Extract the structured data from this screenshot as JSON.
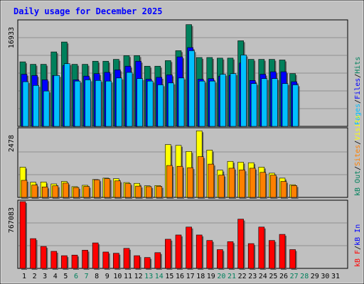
{
  "chart_data": [
    {
      "type": "bar",
      "title": "Daily usage for December 2025",
      "panel": "hits-files-pages",
      "categories": [
        "1",
        "2",
        "3",
        "4",
        "5",
        "6",
        "7",
        "8",
        "9",
        "10",
        "11",
        "12",
        "13",
        "14",
        "15",
        "16",
        "17",
        "18",
        "19",
        "20",
        "21",
        "22",
        "23",
        "24",
        "25",
        "26",
        "27",
        "28",
        "29",
        "30",
        "31"
      ],
      "weekend_days": [
        "6",
        "7",
        "13",
        "14",
        "20",
        "21",
        "27",
        "28"
      ],
      "ymax_label": "16933",
      "ymax": 16933,
      "ylabel_parts": [
        "Pages",
        "/",
        "Files",
        "/",
        "Hits"
      ],
      "series": [
        {
          "name": "Hits",
          "color": "#00805c",
          "values": [
            10400,
            10000,
            10000,
            12000,
            13600,
            10000,
            10000,
            10500,
            10500,
            10800,
            11400,
            11400,
            9700,
            9700,
            10600,
            12200,
            16400,
            11100,
            11100,
            11000,
            11000,
            13800,
            10800,
            10800,
            10800,
            10700,
            8500,
            0,
            0,
            0,
            0
          ]
        },
        {
          "name": "Files",
          "color": "#0000ff",
          "values": [
            8400,
            8200,
            7500,
            8200,
            9800,
            7500,
            8100,
            8500,
            8700,
            9100,
            9700,
            10500,
            7600,
            7900,
            8300,
            11200,
            12700,
            7600,
            7700,
            8100,
            8200,
            10200,
            7400,
            8400,
            8800,
            8800,
            7200,
            0,
            0,
            0,
            0
          ]
        },
        {
          "name": "Pages",
          "color": "#00c0ff",
          "values": [
            7200,
            6600,
            5700,
            8200,
            10100,
            7300,
            7500,
            7400,
            7300,
            7800,
            8700,
            7700,
            7300,
            6700,
            7000,
            7800,
            12200,
            7300,
            7300,
            8400,
            8500,
            11500,
            6900,
            7700,
            7700,
            6900,
            6700,
            0,
            0,
            0,
            0
          ]
        }
      ]
    },
    {
      "type": "bar",
      "panel": "visits-sites-kbout",
      "categories": [
        "1",
        "2",
        "3",
        "4",
        "5",
        "6",
        "7",
        "8",
        "9",
        "10",
        "11",
        "12",
        "13",
        "14",
        "15",
        "16",
        "17",
        "18",
        "19",
        "20",
        "21",
        "22",
        "23",
        "24",
        "25",
        "26",
        "27",
        "28",
        "29",
        "30",
        "31"
      ],
      "ymax_label": "2478",
      "ymax": 2478,
      "ylabel_parts": [
        "kB Out",
        "/",
        "Sites",
        "/",
        "Visits"
      ],
      "series": [
        {
          "name": "Visits",
          "color": "#ffff00",
          "values": [
            1100,
            550,
            560,
            490,
            580,
            390,
            440,
            650,
            700,
            680,
            540,
            510,
            420,
            430,
            1920,
            1890,
            1670,
            2420,
            1720,
            990,
            1310,
            1280,
            1260,
            1100,
            880,
            700,
            460,
            0,
            0,
            0,
            0
          ]
        },
        {
          "name": "Sites",
          "color": "#ff8000",
          "values": [
            620,
            450,
            380,
            420,
            520,
            360,
            400,
            640,
            680,
            600,
            500,
            410,
            390,
            400,
            1160,
            1130,
            1080,
            1480,
            1210,
            810,
            1060,
            1000,
            1060,
            910,
            810,
            580,
            430,
            0,
            0,
            0,
            0
          ]
        },
        {
          "name": "kB Out",
          "color": "#ff0000",
          "values": [
            0,
            0,
            0,
            0,
            0,
            0,
            0,
            0,
            0,
            0,
            0,
            0,
            0,
            0,
            0,
            0,
            0,
            0,
            0,
            0,
            0,
            0,
            0,
            0,
            0,
            0,
            0,
            0,
            0,
            0,
            0
          ]
        }
      ]
    },
    {
      "type": "bar",
      "panel": "kbin-kbf",
      "categories": [
        "1",
        "2",
        "3",
        "4",
        "5",
        "6",
        "7",
        "8",
        "9",
        "10",
        "11",
        "12",
        "13",
        "14",
        "15",
        "16",
        "17",
        "18",
        "19",
        "20",
        "21",
        "22",
        "23",
        "24",
        "25",
        "26",
        "27",
        "28",
        "29",
        "30",
        "31"
      ],
      "ymax_label": "767083",
      "ymax": 767083,
      "ylabel_parts": [
        "kB F",
        "/",
        "kB In"
      ],
      "series": [
        {
          "name": "kB F",
          "color": "#ff0000",
          "values": [
            767000,
            342000,
            252000,
            196000,
            146000,
            153000,
            209000,
            293000,
            188000,
            174000,
            230000,
            146000,
            125000,
            181000,
            335000,
            384000,
            475000,
            384000,
            321000,
            216000,
            307000,
            566000,
            285000,
            475000,
            321000,
            391000,
            216000,
            0,
            0,
            0,
            0
          ]
        }
      ]
    }
  ]
}
